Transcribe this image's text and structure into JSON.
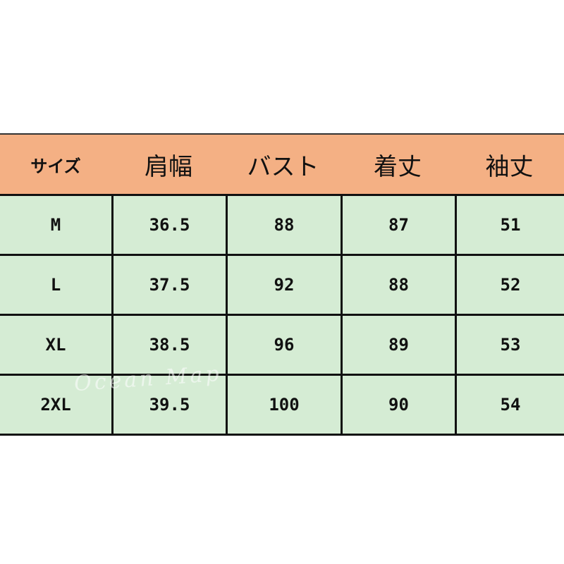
{
  "headers": [
    "サイズ",
    "肩幅",
    "バスト",
    "着丈",
    "袖丈"
  ],
  "rows": [
    [
      "M",
      "36.5",
      "88",
      "87",
      "51"
    ],
    [
      "L",
      "37.5",
      "92",
      "88",
      "52"
    ],
    [
      "XL",
      "38.5",
      "96",
      "89",
      "53"
    ],
    [
      "2XL",
      "39.5",
      "100",
      "90",
      "54"
    ]
  ],
  "watermark": "Ocean Map",
  "colors": {
    "header": "#f4b084",
    "body": "#d5ecd4"
  }
}
